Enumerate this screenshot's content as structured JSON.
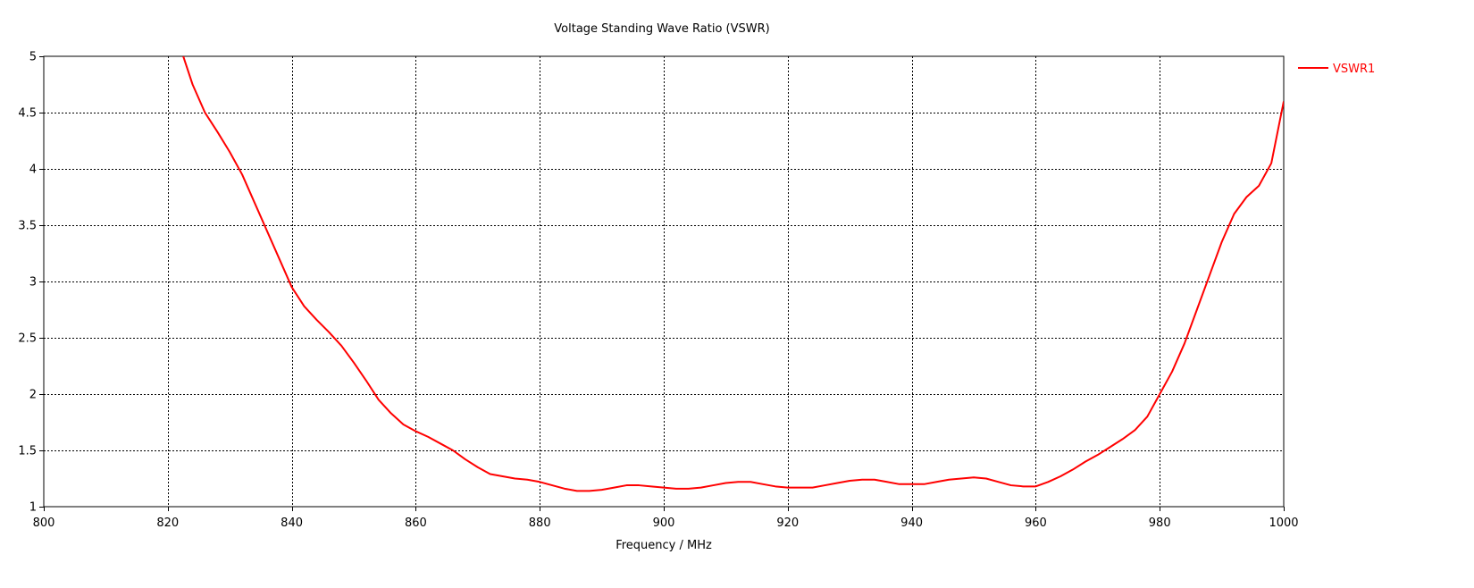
{
  "chart_data": {
    "type": "line",
    "title": "Voltage Standing Wave Ratio (VSWR)",
    "xlabel": "Frequency / MHz",
    "ylabel": "",
    "xlim": [
      800,
      1000
    ],
    "ylim": [
      1,
      5
    ],
    "x_ticks": [
      800,
      820,
      840,
      860,
      880,
      900,
      920,
      940,
      960,
      980,
      1000
    ],
    "y_ticks": [
      1,
      1.5,
      2,
      2.5,
      3,
      3.5,
      4,
      4.5,
      5
    ],
    "y_tick_labels": [
      "1",
      "1.5",
      "2",
      "2.5",
      "3",
      "3.5",
      "4",
      "4.5",
      "5"
    ],
    "grid": true,
    "legend_position": "top-right, outside plot",
    "series": [
      {
        "name": "VSWR1",
        "color": "#ff0000",
        "x": [
          822.5,
          824,
          826,
          828,
          830,
          832,
          834,
          836,
          838,
          840,
          842,
          844,
          846,
          848,
          850,
          852,
          854,
          856,
          858,
          860,
          862,
          864,
          866,
          868,
          870,
          872,
          874,
          876,
          878,
          880,
          882,
          884,
          886,
          888,
          890,
          892,
          894,
          896,
          898,
          900,
          902,
          904,
          906,
          908,
          910,
          912,
          914,
          916,
          918,
          920,
          922,
          924,
          926,
          928,
          930,
          932,
          934,
          936,
          938,
          940,
          942,
          944,
          946,
          948,
          950,
          952,
          954,
          956,
          958,
          960,
          962,
          964,
          966,
          968,
          970,
          972,
          974,
          976,
          978,
          980,
          982,
          984,
          986,
          988,
          990,
          992,
          994,
          996,
          998,
          1000
        ],
        "y": [
          5.0,
          4.75,
          4.5,
          4.33,
          4.15,
          3.95,
          3.7,
          3.45,
          3.2,
          2.95,
          2.78,
          2.66,
          2.55,
          2.43,
          2.28,
          2.12,
          1.95,
          1.83,
          1.73,
          1.67,
          1.62,
          1.56,
          1.5,
          1.42,
          1.35,
          1.29,
          1.27,
          1.25,
          1.24,
          1.22,
          1.19,
          1.16,
          1.14,
          1.14,
          1.15,
          1.17,
          1.19,
          1.19,
          1.18,
          1.17,
          1.16,
          1.16,
          1.17,
          1.19,
          1.21,
          1.22,
          1.22,
          1.2,
          1.18,
          1.17,
          1.17,
          1.17,
          1.19,
          1.21,
          1.23,
          1.24,
          1.24,
          1.22,
          1.2,
          1.2,
          1.2,
          1.22,
          1.24,
          1.25,
          1.26,
          1.25,
          1.22,
          1.19,
          1.18,
          1.18,
          1.22,
          1.27,
          1.33,
          1.4,
          1.46,
          1.53,
          1.6,
          1.68,
          1.8,
          2.0,
          2.2,
          2.45,
          2.75,
          3.05,
          3.35,
          3.6,
          3.75,
          3.85,
          4.05,
          4.6
        ]
      }
    ]
  }
}
